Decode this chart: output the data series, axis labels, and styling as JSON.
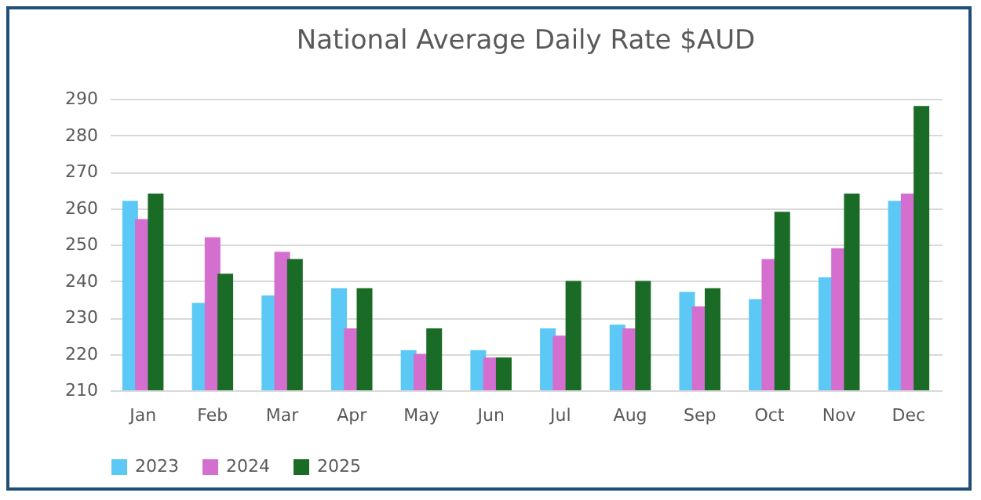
{
  "chart_data": {
    "type": "bar",
    "title": "National Average Daily Rate $AUD",
    "categories": [
      "Jan",
      "Feb",
      "Mar",
      "Apr",
      "May",
      "Jun",
      "Jul",
      "Aug",
      "Sep",
      "Oct",
      "Nov",
      "Dec"
    ],
    "series": [
      {
        "name": "2023",
        "color": "#5bc8f5",
        "values": [
          262,
          234,
          236,
          238,
          221,
          221,
          227,
          228,
          237,
          235,
          241,
          262
        ]
      },
      {
        "name": "2024",
        "color": "#d46fd0",
        "values": [
          257,
          252,
          248,
          227,
          220,
          219,
          225,
          227,
          233,
          246,
          249,
          264
        ]
      },
      {
        "name": "2025",
        "color": "#1a6b25",
        "values": [
          264,
          242,
          246,
          238,
          227,
          219,
          240,
          240,
          238,
          259,
          264,
          288
        ]
      }
    ],
    "ylim": [
      210,
      290
    ],
    "yticks": [
      210,
      220,
      230,
      240,
      250,
      260,
      270,
      280,
      290
    ],
    "grid": "y",
    "legend": "bottom"
  }
}
